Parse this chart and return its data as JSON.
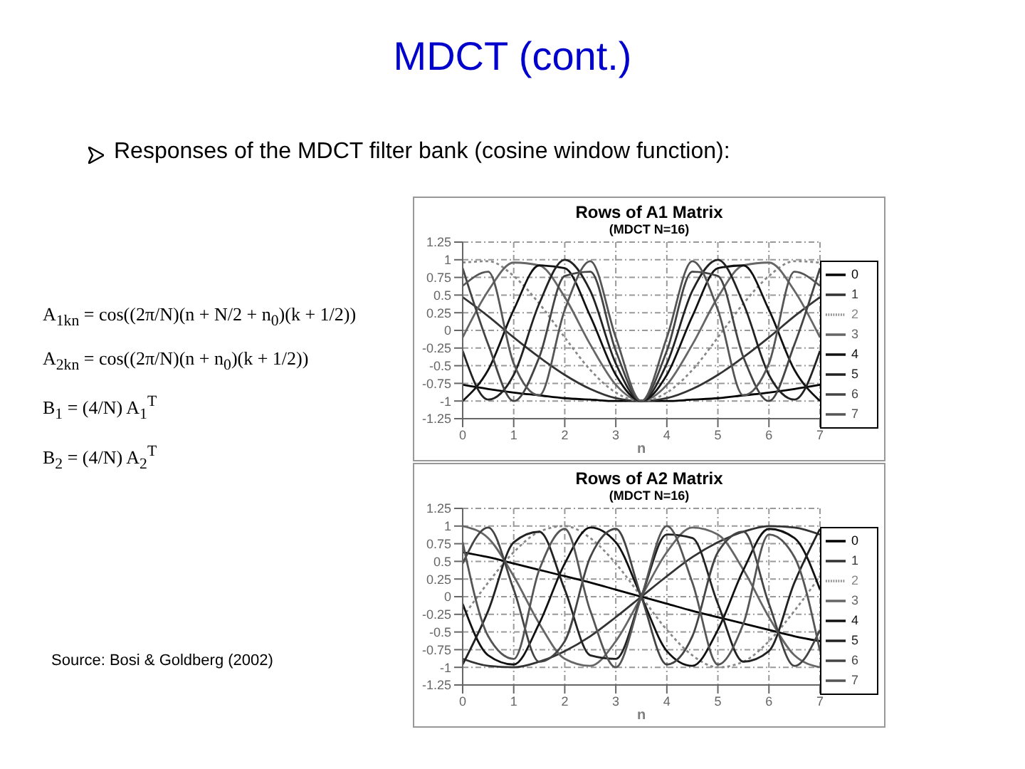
{
  "chart_data": [
    {
      "type": "other",
      "title": "MDCT (cont.)",
      "subtitle": "Responses of the MDCT filter bank (cosine window function):",
      "annotations": [
        "A$_{1kn}$ = cos((2π/N)(n + N/2 + n$_{0}$)(k + 1/2))",
        "A$_{2kn}$ = cos((2π/N)(n + n$_{0}$)(k + 1/2))",
        "B$_{1}$ = (4/N) A$_{1}$$^{T}$",
        "B$_{2}$ = (4/N) A$_{2}$$^{T}$",
        "Source: Bosi & Goldberg (2002)"
      ]
    },
    {
      "type": "line",
      "title": "Rows of A1 Matrix",
      "subtitle": "(MDCT N=16)",
      "xlabel": "n",
      "x": [
        0,
        0.5,
        1,
        1.5,
        2,
        2.5,
        3,
        3.5,
        4,
        4.5,
        5,
        5.5,
        6,
        6.5,
        7
      ],
      "xlim": [
        0,
        7
      ],
      "xticks": [
        0,
        1,
        2,
        3,
        4,
        5,
        6,
        7
      ],
      "ylim": [
        -1.25,
        1.25
      ],
      "yticks": [
        -1.25,
        -1,
        -0.75,
        -0.5,
        -0.25,
        0,
        0.25,
        0.5,
        0.75,
        1,
        1.25
      ],
      "grid": true,
      "legend": "right",
      "series": [
        {
          "name": "0",
          "color": "#000000",
          "values": [
            -0.77,
            -0.83,
            -0.88,
            -0.92,
            -0.96,
            -0.98,
            -1,
            -1,
            -1,
            -0.98,
            -0.96,
            -0.92,
            -0.88,
            -0.83,
            -0.77
          ]
        },
        {
          "name": "1",
          "color": "#333333",
          "values": [
            0.47,
            0.2,
            -0.1,
            -0.38,
            -0.63,
            -0.83,
            -0.96,
            -1,
            -0.96,
            -0.83,
            -0.63,
            -0.38,
            -0.1,
            0.2,
            0.47
          ]
        },
        {
          "name": "2",
          "color": "#888888",
          "line_style": "dotted",
          "values": [
            0.96,
            0.98,
            0.77,
            0.38,
            -0.1,
            -0.56,
            -0.88,
            -1,
            -0.88,
            -0.56,
            -0.1,
            0.38,
            0.77,
            0.98,
            0.96
          ]
        },
        {
          "name": "3",
          "color": "#666666",
          "values": [
            -0.1,
            0.56,
            0.96,
            0.92,
            0.47,
            -0.2,
            -0.77,
            -1,
            -0.77,
            -0.2,
            0.47,
            0.92,
            0.96,
            0.56,
            -0.1
          ]
        },
        {
          "name": "4",
          "color": "#111111",
          "values": [
            -1,
            -0.56,
            0.29,
            0.92,
            0.88,
            0.2,
            -0.63,
            -1,
            -0.63,
            0.2,
            0.88,
            0.92,
            0.29,
            -0.56,
            -1
          ]
        },
        {
          "name": "5",
          "color": "#222222",
          "values": [
            -0.29,
            -0.98,
            -0.63,
            0.38,
            1,
            0.56,
            -0.47,
            -1,
            -0.47,
            0.56,
            1,
            0.38,
            -0.63,
            -0.98,
            -0.29
          ]
        },
        {
          "name": "6",
          "color": "#444444",
          "values": [
            0.88,
            -0.2,
            -1,
            -0.38,
            0.77,
            0.83,
            -0.29,
            -1,
            -0.29,
            0.83,
            0.77,
            -0.38,
            -1,
            -0.2,
            0.88
          ]
        },
        {
          "name": "7",
          "color": "#555555",
          "values": [
            0.63,
            0.83,
            -0.47,
            -0.92,
            0.29,
            0.98,
            -0.1,
            -1,
            -0.1,
            0.98,
            0.29,
            -0.92,
            -0.47,
            0.83,
            0.63
          ]
        }
      ]
    },
    {
      "type": "line",
      "title": "Rows of A2 Matrix",
      "subtitle": "(MDCT N=16)",
      "xlabel": "n",
      "x": [
        0,
        0.5,
        1,
        1.5,
        2,
        2.5,
        3,
        3.5,
        4,
        4.5,
        5,
        5.5,
        6,
        6.5,
        7
      ],
      "xlim": [
        0,
        7
      ],
      "xticks": [
        0,
        1,
        2,
        3,
        4,
        5,
        6,
        7
      ],
      "ylim": [
        -1.25,
        1.25
      ],
      "yticks": [
        -1.25,
        -1,
        -0.75,
        -0.5,
        -0.25,
        0,
        0.25,
        0.5,
        0.75,
        1,
        1.25
      ],
      "grid": true,
      "legend": "right",
      "series": [
        {
          "name": "0",
          "color": "#000000",
          "values": [
            0.63,
            0.56,
            0.47,
            0.38,
            0.29,
            0.2,
            0.1,
            0,
            -0.1,
            -0.2,
            -0.29,
            -0.38,
            -0.47,
            -0.56,
            -0.63
          ]
        },
        {
          "name": "1",
          "color": "#333333",
          "values": [
            -0.88,
            -0.98,
            -1,
            -0.92,
            -0.77,
            -0.56,
            -0.29,
            0,
            0.29,
            0.56,
            0.77,
            0.92,
            1,
            0.98,
            0.88
          ]
        },
        {
          "name": "2",
          "color": "#888888",
          "line_style": "dotted",
          "values": [
            -0.29,
            0.2,
            0.63,
            0.92,
            1,
            0.83,
            0.47,
            0,
            -0.47,
            -0.83,
            -1,
            -0.92,
            -0.63,
            -0.2,
            0.29
          ]
        },
        {
          "name": "3",
          "color": "#666666",
          "values": [
            1,
            0.83,
            0.29,
            -0.38,
            -0.88,
            -0.98,
            -0.63,
            0,
            0.63,
            0.98,
            0.88,
            0.38,
            -0.29,
            -0.83,
            -1
          ]
        },
        {
          "name": "4",
          "color": "#111111",
          "values": [
            -0.1,
            -0.83,
            -0.96,
            -0.38,
            0.47,
            0.98,
            0.77,
            0,
            -0.77,
            -0.98,
            -0.47,
            0.38,
            0.96,
            0.83,
            0.1
          ]
        },
        {
          "name": "5",
          "color": "#222222",
          "values": [
            -0.96,
            -0.2,
            0.77,
            0.92,
            0.1,
            -0.83,
            -0.88,
            0,
            0.88,
            0.83,
            -0.1,
            -0.92,
            -0.77,
            0.2,
            0.96
          ]
        },
        {
          "name": "6",
          "color": "#444444",
          "values": [
            0.47,
            0.98,
            0.1,
            -0.92,
            -0.63,
            0.56,
            0.96,
            0,
            -0.96,
            -0.56,
            0.63,
            0.92,
            -0.1,
            -0.98,
            -0.47
          ]
        },
        {
          "name": "7",
          "color": "#555555",
          "values": [
            0.77,
            -0.56,
            -0.88,
            0.38,
            0.96,
            -0.2,
            -1,
            0,
            1,
            0.2,
            -0.96,
            -0.38,
            0.88,
            0.56,
            -0.77
          ]
        }
      ]
    }
  ]
}
